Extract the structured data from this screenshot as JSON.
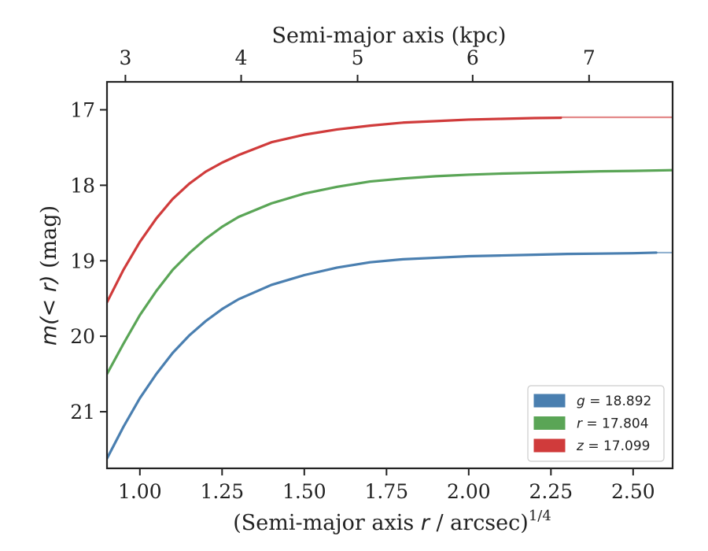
{
  "chart_data": {
    "type": "line",
    "title": "",
    "xlabel_main": "(Semi-major axis r / arcsec)",
    "xlabel_var": "r",
    "xlabel_exponent": "1/4",
    "xlabel_top": "Semi-major axis (kpc)",
    "ylabel_main": "(mag)",
    "ylabel_expr": "m(< r)",
    "xlim": [
      0.9,
      2.62
    ],
    "ylim": [
      21.75,
      16.63
    ],
    "y_inverted": true,
    "x_ticks": [
      1.0,
      1.25,
      1.5,
      1.75,
      2.0,
      2.25,
      2.5
    ],
    "x_tick_labels": [
      "1.00",
      "1.25",
      "1.50",
      "1.75",
      "2.00",
      "2.25",
      "2.50"
    ],
    "y_ticks": [
      17,
      18,
      19,
      20,
      21
    ],
    "y_tick_labels": [
      "17",
      "18",
      "19",
      "20",
      "21"
    ],
    "top_ticks": [
      3,
      4,
      5,
      6,
      7
    ],
    "top_tick_labels": [
      "3",
      "4",
      "5",
      "6",
      "7"
    ],
    "top_tick_positions_x": [
      0.956,
      1.308,
      1.662,
      2.012,
      2.366
    ],
    "grid": false,
    "legend_position": "lower-right",
    "legend_entries": [
      {
        "var": "g",
        "text": " = 18.892",
        "color": "#4a7fb0"
      },
      {
        "var": "r",
        "text": " = 17.804",
        "color": "#5aa556"
      },
      {
        "var": "z",
        "text": " = 17.099",
        "color": "#d03b3b"
      }
    ],
    "series": [
      {
        "name": "g = 18.892",
        "color": "#4a7fb0",
        "asymptote": 18.892,
        "solid_end_x": 2.57,
        "x": [
          0.9,
          0.95,
          1.0,
          1.05,
          1.1,
          1.15,
          1.2,
          1.25,
          1.3,
          1.4,
          1.5,
          1.6,
          1.7,
          1.8,
          1.9,
          2.0,
          2.1,
          2.2,
          2.3,
          2.4,
          2.5,
          2.57,
          2.62
        ],
        "y": [
          21.62,
          21.2,
          20.82,
          20.5,
          20.22,
          19.99,
          19.8,
          19.64,
          19.51,
          19.32,
          19.19,
          19.09,
          19.02,
          18.98,
          18.96,
          18.94,
          18.93,
          18.92,
          18.91,
          18.905,
          18.9,
          18.892,
          18.892
        ]
      },
      {
        "name": "r = 17.804",
        "color": "#5aa556",
        "asymptote": 17.804,
        "solid_end_x": 2.62,
        "x": [
          0.9,
          0.95,
          1.0,
          1.05,
          1.1,
          1.15,
          1.2,
          1.25,
          1.3,
          1.4,
          1.5,
          1.6,
          1.7,
          1.8,
          1.9,
          2.0,
          2.1,
          2.2,
          2.3,
          2.4,
          2.5,
          2.62
        ],
        "y": [
          20.5,
          20.1,
          19.72,
          19.4,
          19.12,
          18.9,
          18.71,
          18.55,
          18.42,
          18.24,
          18.11,
          18.02,
          17.95,
          17.91,
          17.88,
          17.86,
          17.845,
          17.835,
          17.825,
          17.815,
          17.81,
          17.8
        ]
      },
      {
        "name": "z = 17.099",
        "color": "#d03b3b",
        "asymptote": 17.099,
        "solid_end_x": 2.28,
        "x": [
          0.9,
          0.95,
          1.0,
          1.05,
          1.1,
          1.15,
          1.2,
          1.25,
          1.3,
          1.4,
          1.5,
          1.6,
          1.7,
          1.8,
          1.9,
          2.0,
          2.1,
          2.2,
          2.28,
          2.4,
          2.5,
          2.62
        ],
        "y": [
          19.55,
          19.12,
          18.75,
          18.44,
          18.18,
          17.98,
          17.82,
          17.7,
          17.6,
          17.43,
          17.33,
          17.26,
          17.21,
          17.17,
          17.15,
          17.13,
          17.12,
          17.11,
          17.106,
          17.102,
          17.1,
          17.099
        ]
      }
    ]
  }
}
